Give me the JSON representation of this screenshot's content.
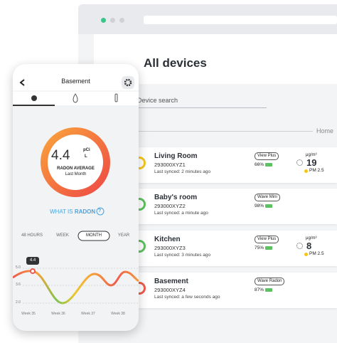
{
  "browser": {
    "title": "All devices",
    "search_placeholder": "Device search",
    "breadcrumb": "Home"
  },
  "devices": [
    {
      "name": "Living Room",
      "serial": "293000XYZ1",
      "synced": "Last synced: 2 minutes ago",
      "model": "View Plus",
      "battery": "66%",
      "color": "#f5c518",
      "unit": "μg/m³",
      "pm": "19",
      "pm_label": "PM 2.5"
    },
    {
      "name": "Baby's room",
      "serial": "293000XYZ2",
      "synced": "Last synced: a minute ago",
      "model": "Wave Mini",
      "battery": "98%",
      "color": "#5cc160"
    },
    {
      "name": "Kitchen",
      "serial": "293000XYZ3",
      "synced": "Last synced: 3 minutes ago",
      "model": "View Plus",
      "battery": "75%",
      "color": "#5cc160",
      "unit": "μg/m³",
      "pm": "8",
      "pm_label": "PM 2.5"
    },
    {
      "name": "Basement",
      "serial": "293000XYZ4",
      "synced": "Last synced: a few seconds ago",
      "model": "Wave Radon",
      "battery": "87%",
      "color": "#ef5a4c"
    }
  ],
  "phone": {
    "header": "Basement",
    "reading": "4.4",
    "unit_top": "pCi",
    "unit_bottom": "L",
    "reading_label": "RADON AVERAGE",
    "reading_period": "Last Month",
    "what_is": "WHAT IS",
    "radon": "RADON",
    "help_icon": "?",
    "periods": [
      "48 HOURS",
      "WEEK",
      "MONTH",
      "YEAR"
    ],
    "chart_y_labels": [
      "5.0",
      "3.6",
      "2.0"
    ],
    "chart_x_labels": [
      "Week 35",
      "Week 36",
      "Week 37",
      "Week 38"
    ],
    "chart_bubble": "4.4"
  }
}
